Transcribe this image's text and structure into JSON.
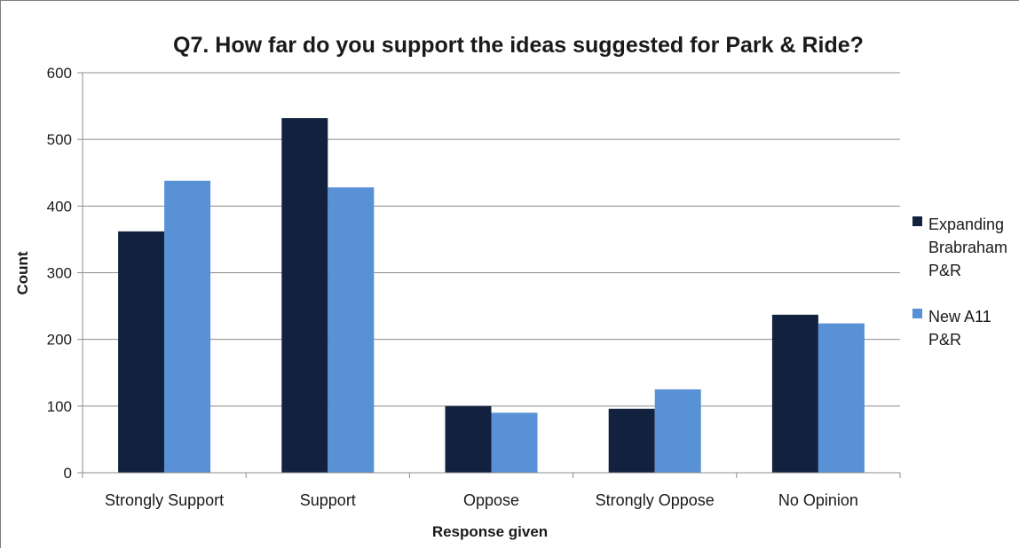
{
  "chart_data": {
    "type": "bar",
    "title": "Q7. How far do you support the ideas suggested for Park & Ride?",
    "xlabel": "Response given",
    "ylabel": "Count",
    "categories": [
      "Strongly Support",
      "Support",
      "Oppose",
      "Strongly Oppose",
      "No Opinion"
    ],
    "series": [
      {
        "name": "Expanding Brabraham P&R",
        "legend_lines": [
          "Expanding",
          "Brabraham",
          "P&R"
        ],
        "color": "#12223e",
        "values": [
          362,
          532,
          100,
          96,
          237
        ]
      },
      {
        "name": "New A11 P&R",
        "legend_lines": [
          "New A11",
          "P&R"
        ],
        "color": "#5891d5",
        "values": [
          438,
          428,
          90,
          125,
          224
        ]
      }
    ],
    "ylim": [
      0,
      600
    ],
    "yticks": [
      0,
      100,
      200,
      300,
      400,
      500,
      600
    ],
    "grid": true,
    "legend_position": "right"
  }
}
